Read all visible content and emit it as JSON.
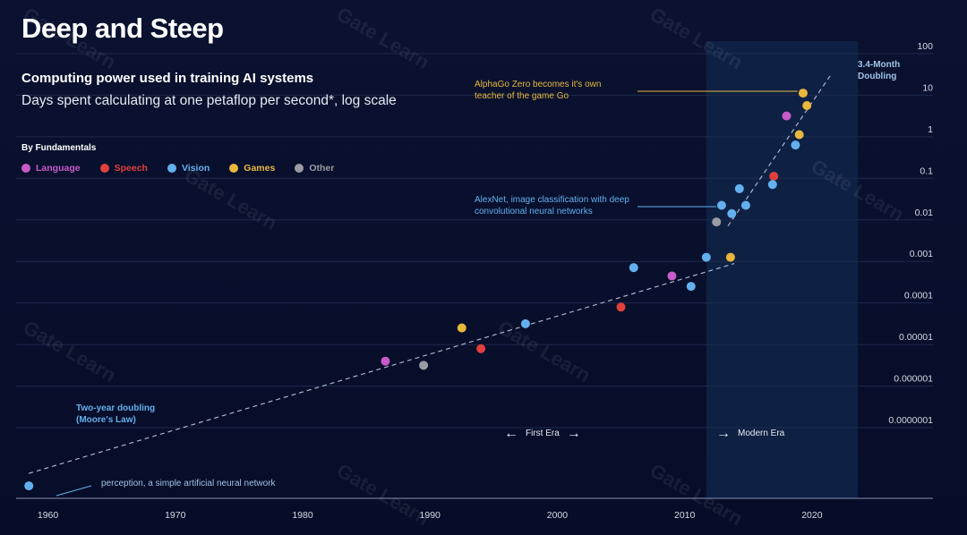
{
  "header": {
    "title": "Deep and Steep",
    "subtitle": "Computing power used in training AI systems",
    "description": "Days spent calculating at one petaflop per second*, log scale"
  },
  "legend": {
    "heading": "By Fundamentals",
    "items": [
      {
        "label": "Language",
        "color": "#c85bc8"
      },
      {
        "label": "Speech",
        "color": "#e0403b"
      },
      {
        "label": "Vision",
        "color": "#63b0ee"
      },
      {
        "label": "Games",
        "color": "#e8b73c"
      },
      {
        "label": "Other",
        "color": "#9a9ca4"
      }
    ]
  },
  "annotations": {
    "alphago": "AlphaGo Zero becomes it's own teacher of the game Go",
    "alexnet": "AlexNet, image classification with deep convolutional neural networks",
    "moore": "Two-year doubling (Moore's Law)",
    "doubling": "3.4-Month Doubling",
    "perception": "perception, a simple artificial neural network",
    "first_era": "First Era",
    "modern_era": "Modern Era"
  },
  "watermark": "Gate Learn",
  "colors": {
    "annotation_gold": "#e8b73c",
    "annotation_blue": "#63b0ee",
    "axis_text": "#d5dae6",
    "modern_band": "#0f2448"
  },
  "chart_data": {
    "type": "scatter",
    "title": "Deep and Steep",
    "xlabel": "",
    "ylabel": "Days spent calculating at one petaflop per second (log scale)",
    "xlim": [
      1957.5,
      2029.5
    ],
    "ylog_range": [
      -8.7,
      2.3
    ],
    "x_ticks": [
      1960,
      1970,
      1980,
      1990,
      2000,
      2010,
      2020
    ],
    "y_ticks": [
      {
        "label": "100",
        "exp": 2
      },
      {
        "label": "10",
        "exp": 1
      },
      {
        "label": "1",
        "exp": 0
      },
      {
        "label": "0.1",
        "exp": -1
      },
      {
        "label": "0.01",
        "exp": -2
      },
      {
        "label": "0.001",
        "exp": -3
      },
      {
        "label": "0.0001",
        "exp": -4
      },
      {
        "label": "0.00001",
        "exp": -5
      },
      {
        "label": "0.000001",
        "exp": -6
      },
      {
        "label": "0.0000001",
        "exp": -7
      }
    ],
    "modern_era_range": [
      2011.7,
      2023.6
    ],
    "trend_lines": [
      {
        "name": "Two-year doubling (Moore's Law)",
        "x": [
          1958.5,
          2013.9
        ],
        "log_y": [
          -8.1,
          -3.05
        ]
      },
      {
        "name": "3.4-Month Doubling",
        "x": [
          2013.4,
          2021.5
        ],
        "log_y": [
          -2.15,
          1.5
        ]
      }
    ],
    "series": [
      {
        "name": "Language",
        "color": "#c85bc8",
        "points": [
          [
            1986.5,
            -5.4
          ],
          [
            2009,
            -3.35
          ],
          [
            2018,
            0.5
          ]
        ]
      },
      {
        "name": "Speech",
        "color": "#e0403b",
        "points": [
          [
            1994,
            -5.1
          ],
          [
            2005,
            -4.1
          ],
          [
            2017,
            -0.95
          ]
        ]
      },
      {
        "name": "Vision",
        "color": "#63b0ee",
        "points": [
          [
            1958.5,
            -8.4
          ],
          [
            1997.5,
            -4.5
          ],
          [
            2006,
            -3.15
          ],
          [
            2010.5,
            -3.6
          ],
          [
            2011.7,
            -2.9
          ],
          [
            2012.9,
            -1.65
          ],
          [
            2013.7,
            -1.85
          ],
          [
            2014.3,
            -1.25
          ],
          [
            2014.8,
            -1.65
          ],
          [
            2016.9,
            -1.15
          ],
          [
            2018.7,
            -0.2
          ]
        ]
      },
      {
        "name": "Games",
        "color": "#e8b73c",
        "points": [
          [
            1992.5,
            -4.6
          ],
          [
            2013.6,
            -2.9
          ],
          [
            2019,
            0.05
          ],
          [
            2019.3,
            1.05
          ],
          [
            2019.6,
            0.75
          ]
        ]
      },
      {
        "name": "Other",
        "color": "#9a9ca4",
        "points": [
          [
            1989.5,
            -5.5
          ],
          [
            2012.5,
            -2.05
          ]
        ]
      }
    ]
  }
}
